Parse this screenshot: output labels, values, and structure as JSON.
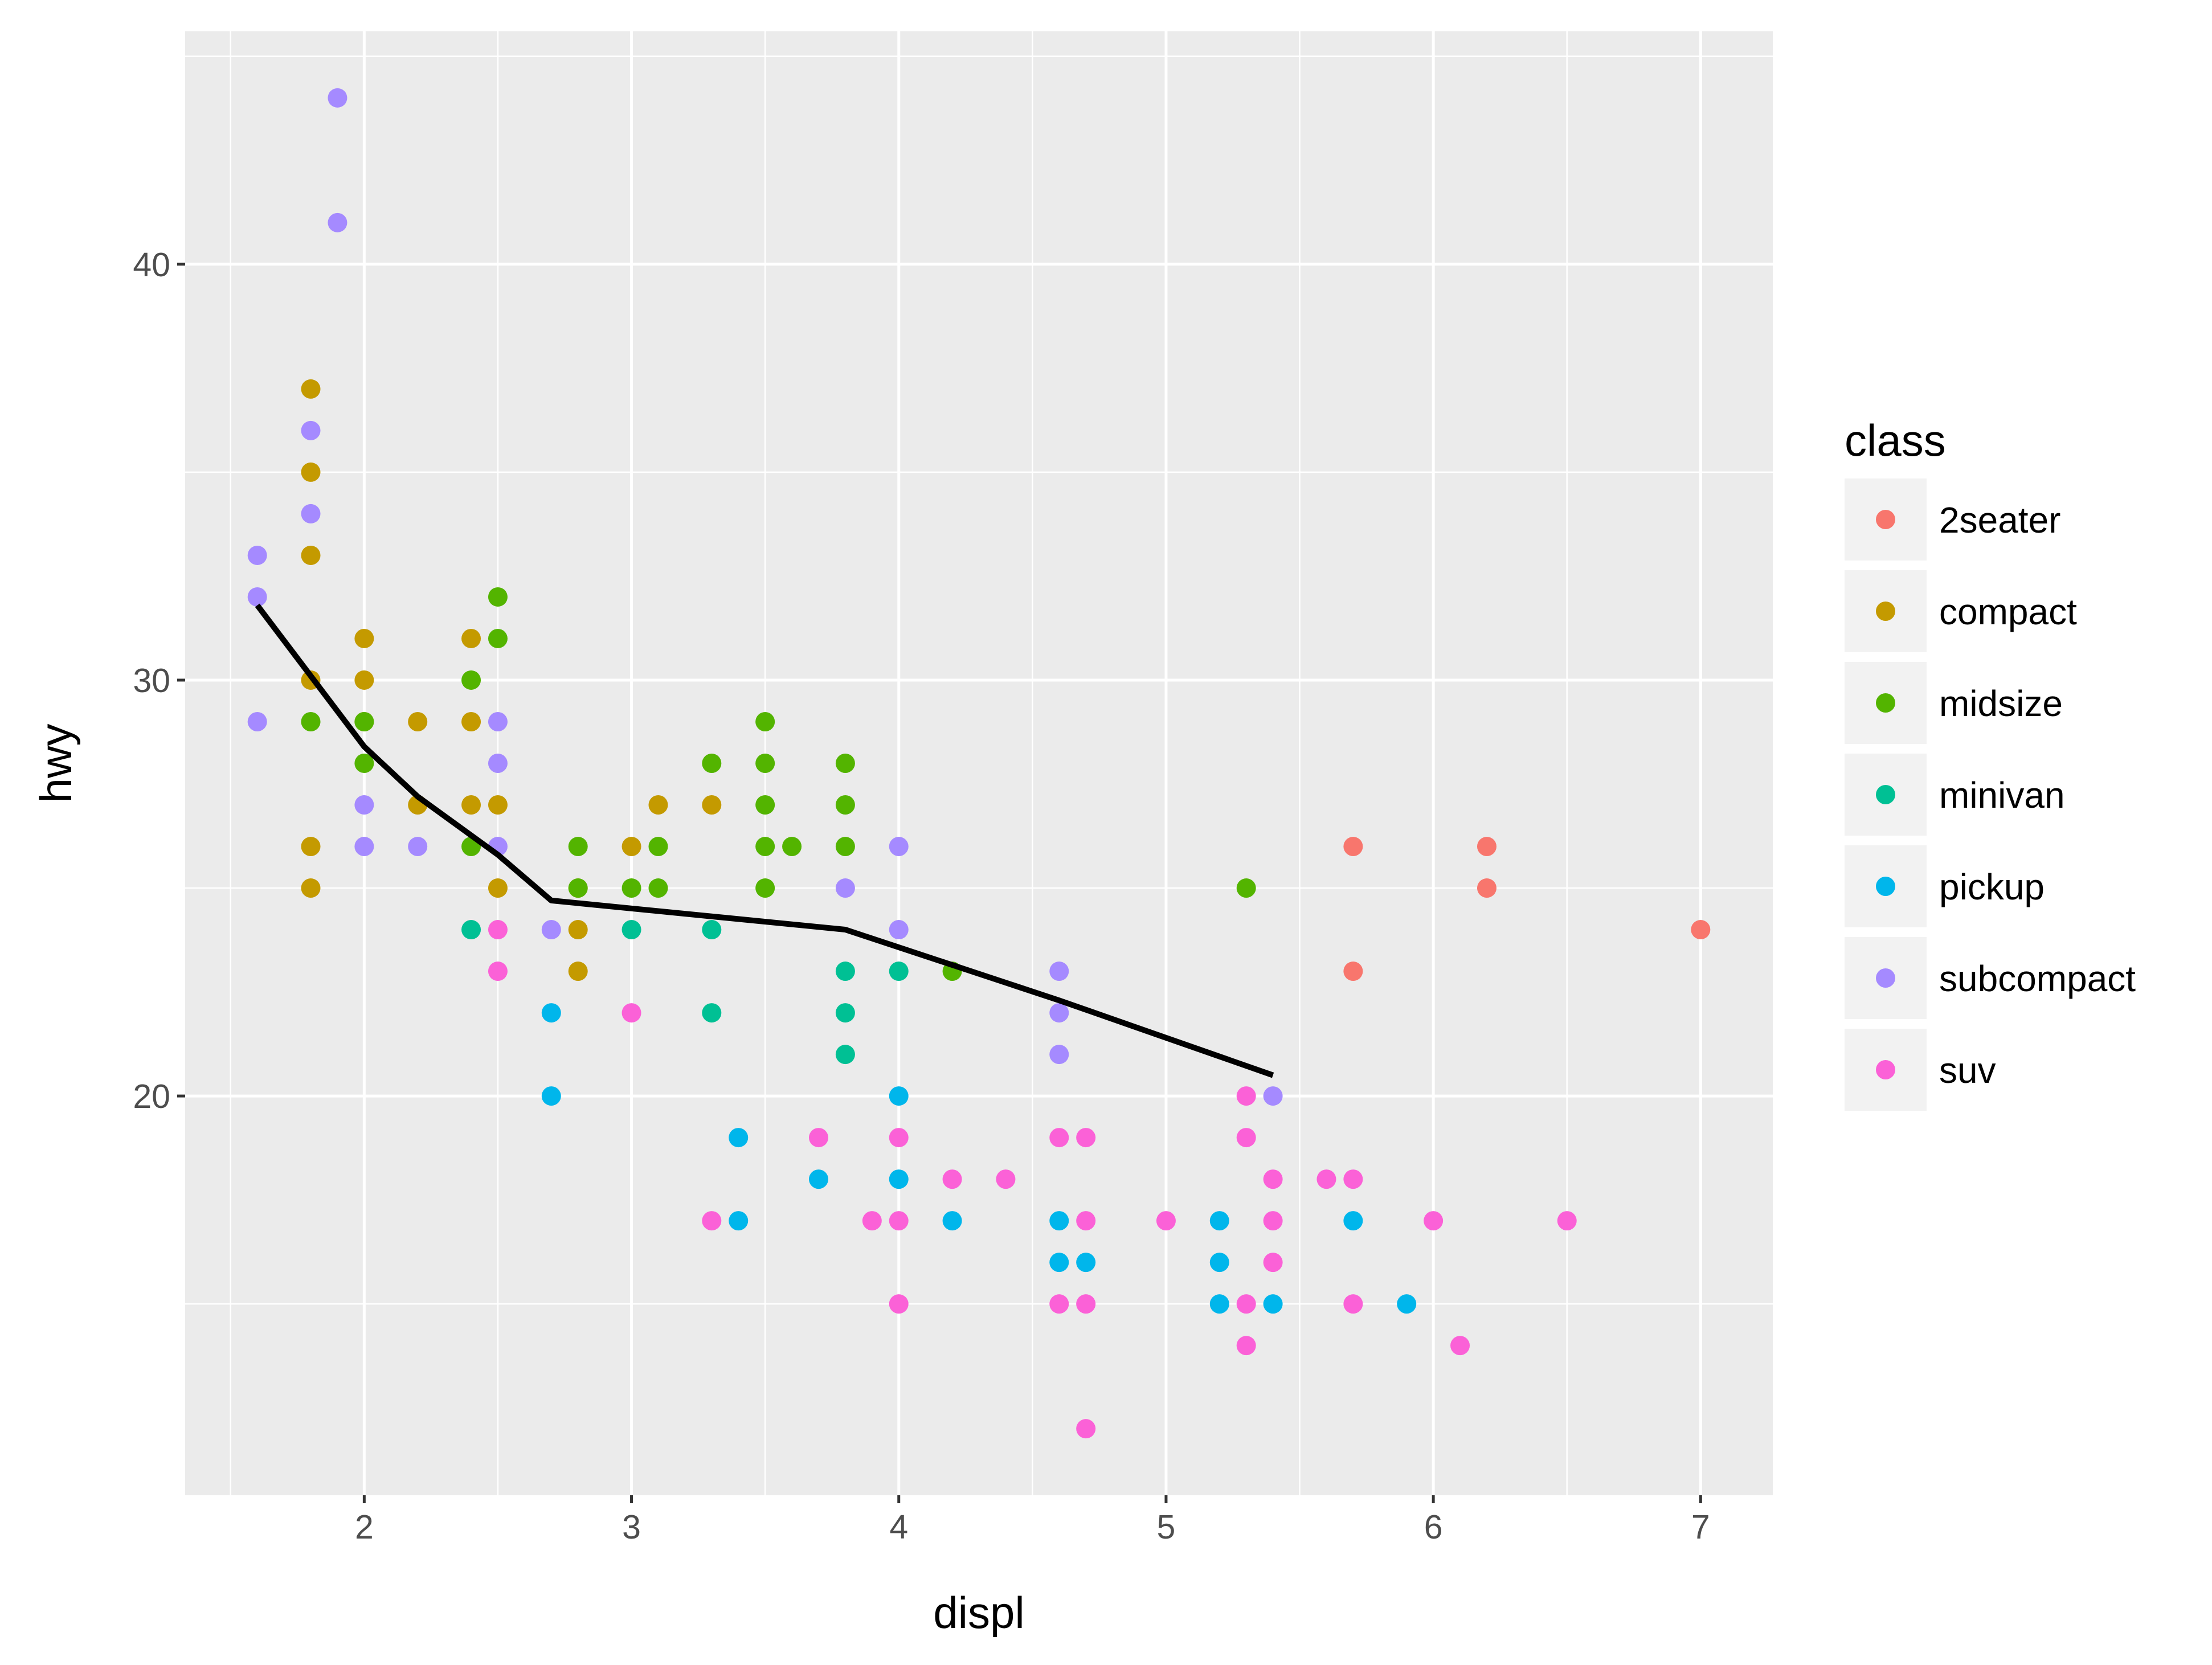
{
  "chart_data": {
    "type": "scatter",
    "xlabel": "displ",
    "ylabel": "hwy",
    "xlim": [
      1.33,
      7.27
    ],
    "ylim": [
      10.4,
      45.6
    ],
    "x_ticks": [
      2,
      3,
      4,
      5,
      6,
      7
    ],
    "y_ticks": [
      20,
      30,
      40
    ],
    "x_tick_labels": [
      "2",
      "3",
      "4",
      "5",
      "6",
      "7"
    ],
    "y_tick_labels": [
      "20",
      "30",
      "40"
    ],
    "grid": true,
    "background": "#EBEBEB",
    "legend": {
      "title": "class",
      "position": "right",
      "entries": [
        "2seater",
        "compact",
        "midsize",
        "minivan",
        "pickup",
        "subcompact",
        "suv"
      ]
    },
    "colors": {
      "2seater": "#F8766D",
      "compact": "#C49A00",
      "midsize": "#53B400",
      "minivan": "#00C094",
      "pickup": "#00B6EB",
      "subcompact": "#A58AFF",
      "suv": "#FB61D7"
    },
    "series": [
      {
        "name": "2seater",
        "points": [
          [
            5.7,
            26
          ],
          [
            5.7,
            23
          ],
          [
            6.2,
            26
          ],
          [
            6.2,
            25
          ],
          [
            7.0,
            24
          ]
        ]
      },
      {
        "name": "compact",
        "points": [
          [
            1.8,
            37
          ],
          [
            1.8,
            35
          ],
          [
            1.8,
            33
          ],
          [
            1.8,
            30
          ],
          [
            1.8,
            26
          ],
          [
            1.8,
            25
          ],
          [
            2.0,
            31
          ],
          [
            2.0,
            30
          ],
          [
            2.0,
            29
          ],
          [
            2.2,
            29
          ],
          [
            2.2,
            27
          ],
          [
            2.4,
            31
          ],
          [
            2.4,
            29
          ],
          [
            2.4,
            27
          ],
          [
            2.5,
            27
          ],
          [
            2.5,
            25
          ],
          [
            2.8,
            25
          ],
          [
            2.8,
            24
          ],
          [
            2.8,
            23
          ],
          [
            3.0,
            26
          ],
          [
            3.1,
            27
          ],
          [
            3.3,
            27
          ]
        ]
      },
      {
        "name": "midsize",
        "points": [
          [
            1.8,
            29
          ],
          [
            2.0,
            29
          ],
          [
            2.0,
            28
          ],
          [
            2.4,
            30
          ],
          [
            2.4,
            26
          ],
          [
            2.5,
            32
          ],
          [
            2.5,
            31
          ],
          [
            2.8,
            26
          ],
          [
            2.8,
            25
          ],
          [
            3.0,
            25
          ],
          [
            3.1,
            26
          ],
          [
            3.1,
            25
          ],
          [
            3.3,
            28
          ],
          [
            3.5,
            29
          ],
          [
            3.5,
            28
          ],
          [
            3.5,
            27
          ],
          [
            3.5,
            26
          ],
          [
            3.5,
            25
          ],
          [
            3.6,
            26
          ],
          [
            3.8,
            28
          ],
          [
            3.8,
            27
          ],
          [
            3.8,
            26
          ],
          [
            4.2,
            23
          ],
          [
            5.3,
            25
          ]
        ]
      },
      {
        "name": "minivan",
        "points": [
          [
            2.4,
            24
          ],
          [
            3.0,
            24
          ],
          [
            3.3,
            24
          ],
          [
            3.3,
            22
          ],
          [
            3.8,
            23
          ],
          [
            3.8,
            22
          ],
          [
            3.8,
            21
          ],
          [
            4.0,
            23
          ]
        ]
      },
      {
        "name": "pickup",
        "points": [
          [
            2.7,
            22
          ],
          [
            2.7,
            20
          ],
          [
            3.4,
            19
          ],
          [
            3.4,
            17
          ],
          [
            3.7,
            18
          ],
          [
            4.0,
            20
          ],
          [
            4.0,
            18
          ],
          [
            4.2,
            17
          ],
          [
            4.6,
            17
          ],
          [
            4.6,
            16
          ],
          [
            4.7,
            16
          ],
          [
            5.2,
            17
          ],
          [
            5.2,
            16
          ],
          [
            5.2,
            15
          ],
          [
            5.4,
            15
          ],
          [
            5.7,
            17
          ],
          [
            5.9,
            15
          ]
        ]
      },
      {
        "name": "subcompact",
        "points": [
          [
            1.6,
            33
          ],
          [
            1.6,
            32
          ],
          [
            1.6,
            29
          ],
          [
            1.8,
            36
          ],
          [
            1.8,
            34
          ],
          [
            1.9,
            44
          ],
          [
            1.9,
            41
          ],
          [
            2.0,
            27
          ],
          [
            2.0,
            26
          ],
          [
            2.2,
            26
          ],
          [
            2.5,
            29
          ],
          [
            2.5,
            28
          ],
          [
            2.5,
            26
          ],
          [
            2.7,
            24
          ],
          [
            3.8,
            25
          ],
          [
            4.0,
            26
          ],
          [
            4.0,
            24
          ],
          [
            4.6,
            23
          ],
          [
            4.6,
            22
          ],
          [
            4.6,
            21
          ],
          [
            5.4,
            20
          ]
        ]
      },
      {
        "name": "suv",
        "points": [
          [
            2.5,
            24
          ],
          [
            2.5,
            23
          ],
          [
            3.0,
            22
          ],
          [
            3.3,
            17
          ],
          [
            3.7,
            19
          ],
          [
            3.9,
            17
          ],
          [
            4.0,
            19
          ],
          [
            4.0,
            17
          ],
          [
            4.0,
            15
          ],
          [
            4.2,
            18
          ],
          [
            4.4,
            18
          ],
          [
            4.6,
            19
          ],
          [
            4.6,
            15
          ],
          [
            4.7,
            19
          ],
          [
            4.7,
            17
          ],
          [
            4.7,
            15
          ],
          [
            4.7,
            12
          ],
          [
            5.0,
            17
          ],
          [
            5.3,
            20
          ],
          [
            5.3,
            19
          ],
          [
            5.3,
            15
          ],
          [
            5.3,
            14
          ],
          [
            5.4,
            18
          ],
          [
            5.4,
            17
          ],
          [
            5.4,
            16
          ],
          [
            5.6,
            18
          ],
          [
            5.7,
            18
          ],
          [
            5.7,
            15
          ],
          [
            6.0,
            17
          ],
          [
            6.1,
            14
          ],
          [
            6.5,
            17
          ]
        ]
      }
    ],
    "smooth_line": {
      "color": "#000000",
      "points": [
        [
          1.6,
          31.8
        ],
        [
          2.0,
          28.4
        ],
        [
          2.2,
          27.2
        ],
        [
          2.5,
          25.8
        ],
        [
          2.7,
          24.7
        ],
        [
          3.8,
          24.0
        ],
        [
          4.6,
          22.3
        ],
        [
          5.4,
          20.5
        ]
      ]
    }
  }
}
